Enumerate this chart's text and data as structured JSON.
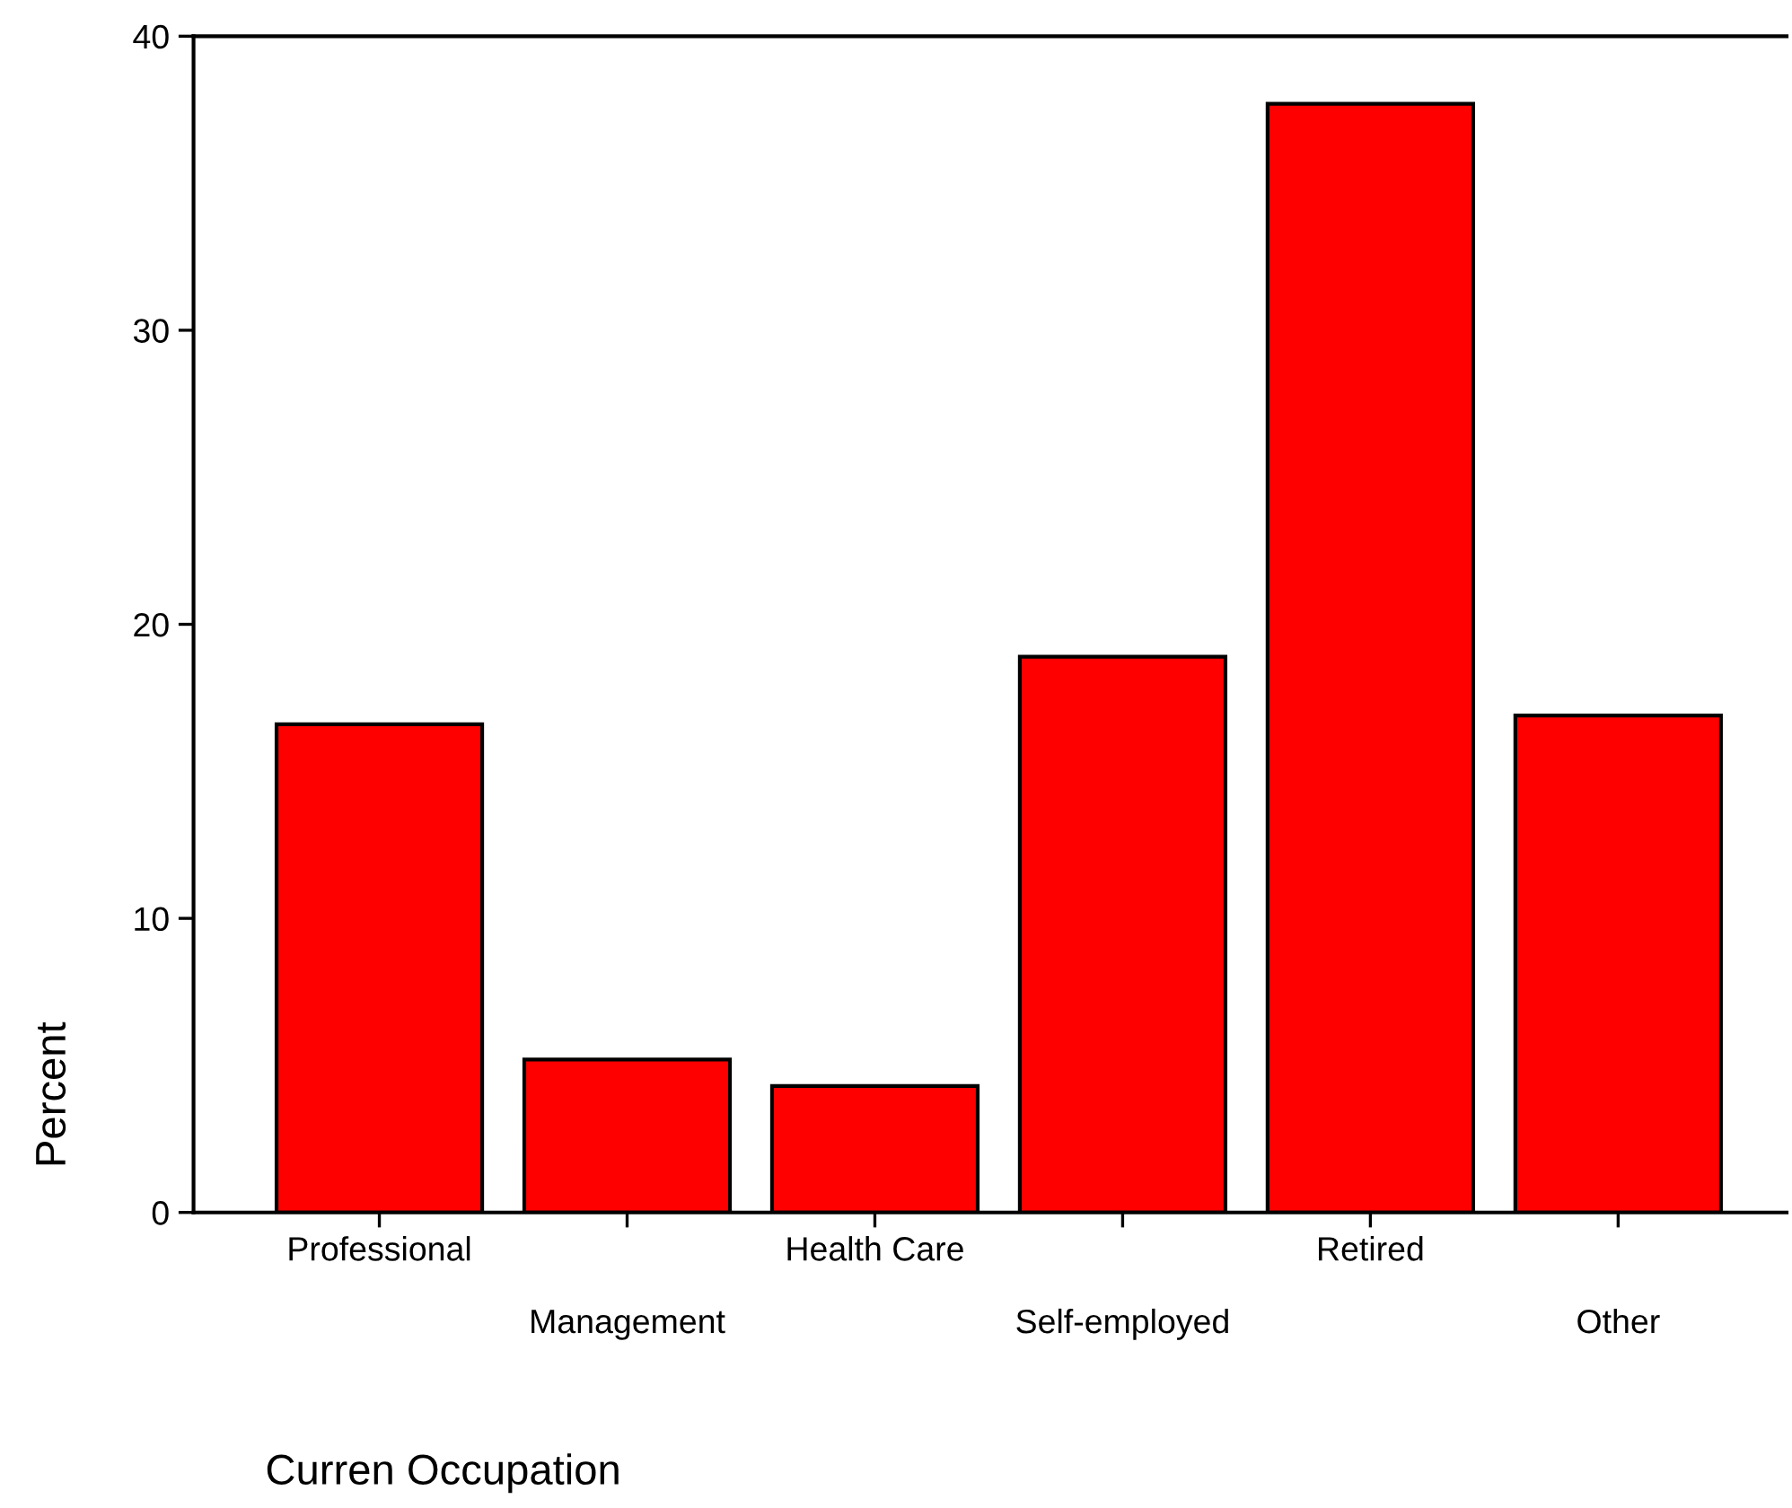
{
  "chart_data": {
    "type": "bar",
    "xlabel": "Curren Occupation",
    "ylabel": "Percent",
    "categories": [
      "Professional",
      "Management",
      "Health Care",
      "Self-employed",
      "Retired",
      "Other"
    ],
    "values": [
      16.6,
      5.2,
      4.3,
      18.9,
      37.7,
      16.9
    ],
    "color": "#ff0000",
    "ylim": [
      0,
      40
    ],
    "yticks": [
      0,
      10,
      20,
      30,
      40
    ],
    "grid": false
  }
}
